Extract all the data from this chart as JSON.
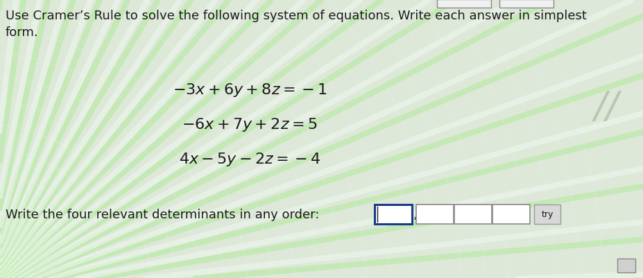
{
  "title_line1": "Use Cramer’s Rule to solve the following system of equations. Write each answer in simplest",
  "title_line2": "form.",
  "eq1": "$-3x+6y+8z=-1$",
  "eq2": "$-6x+7y+2z=5$",
  "eq3": "$4x-5y-2z=-4$",
  "bottom_text": "Write the four relevant determinants in any order:",
  "try_label": "try",
  "bg_color": "#dde8d8",
  "text_color": "#1a1a1a",
  "box_border_color_active": "#1a3a8a",
  "box_border_color": "#888888",
  "box_fill_color": "#ffffff",
  "try_box_color": "#d8d8d8",
  "eq_fontsize": 16,
  "text_fontsize": 13,
  "title_fontsize": 13,
  "swirl_color_green": "#a8e890",
  "swirl_color_white": "#f0f8f0"
}
